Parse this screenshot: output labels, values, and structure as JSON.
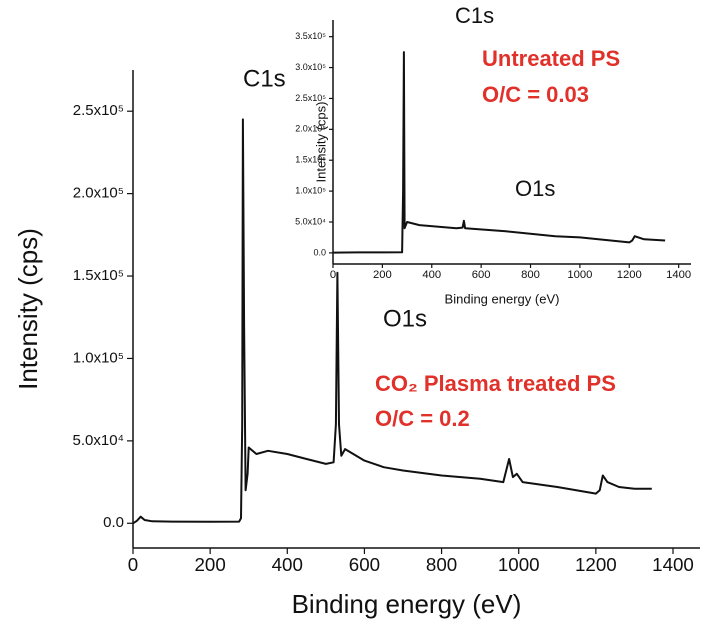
{
  "chart_data": [
    {
      "type": "line",
      "xlabel": "Binding energy (eV)",
      "ylabel": "Intensity (cps)",
      "color": "#111111",
      "xlim": [
        0,
        1470
      ],
      "ylim": [
        -15000,
        275000
      ],
      "xticks": [
        0,
        200,
        400,
        600,
        800,
        1000,
        1200,
        1400
      ],
      "yticks": [
        {
          "value": 0,
          "label": "0.0"
        },
        {
          "value": 50000,
          "label": "5.0x10⁴"
        },
        {
          "value": 100000,
          "label": "1.0x10⁵"
        },
        {
          "value": 150000,
          "label": "1.5x10⁵"
        },
        {
          "value": 200000,
          "label": "2.0x10⁵"
        },
        {
          "value": 250000,
          "label": "2.5x10⁵"
        }
      ],
      "x": [
        0,
        10,
        20,
        30,
        50,
        100,
        200,
        275,
        280,
        283,
        285,
        288,
        292,
        297,
        300,
        320,
        350,
        400,
        450,
        500,
        520,
        526,
        530,
        534,
        540,
        550,
        600,
        650,
        700,
        800,
        900,
        960,
        975,
        985,
        995,
        1010,
        1100,
        1200,
        1210,
        1218,
        1230,
        1260,
        1300,
        1345
      ],
      "values": [
        0,
        1500,
        4000,
        2000,
        1200,
        1000,
        900,
        1000,
        3000,
        60000,
        245000,
        120000,
        20000,
        30000,
        46000,
        42000,
        44000,
        42000,
        39000,
        36000,
        37000,
        60000,
        152000,
        60000,
        41000,
        45000,
        38000,
        34000,
        32000,
        29000,
        27000,
        25000,
        39000,
        28000,
        30000,
        25000,
        22000,
        18000,
        20000,
        29000,
        25000,
        22000,
        21000,
        21000
      ],
      "annotations": [
        {
          "text": "C1s",
          "color": "#111111"
        },
        {
          "text": "O1s",
          "color": "#111111"
        },
        {
          "text": "CO₂ Plasma treated PS",
          "color": "#e0312a"
        },
        {
          "text": "O/C = 0.2",
          "color": "#e0312a"
        }
      ]
    },
    {
      "type": "line",
      "xlabel": "Binding energy (eV)",
      "ylabel": "Intensity (cps)",
      "color": "#111111",
      "xlim": [
        0,
        1450
      ],
      "ylim": [
        -18000,
        377000
      ],
      "xticks": [
        0,
        200,
        400,
        600,
        800,
        1000,
        1200,
        1400
      ],
      "yticks": [
        {
          "value": 0,
          "label": "0.0"
        },
        {
          "value": 50000,
          "label": "5.0x10⁴"
        },
        {
          "value": 100000,
          "label": "1.0x10⁵"
        },
        {
          "value": 150000,
          "label": "1.5x10⁵"
        },
        {
          "value": 200000,
          "label": "2.0x10⁵"
        },
        {
          "value": 250000,
          "label": "2.5x10⁵"
        },
        {
          "value": 300000,
          "label": "3.0x10⁵"
        },
        {
          "value": 350000,
          "label": "3.5x10⁵"
        }
      ],
      "x": [
        0,
        100,
        200,
        280,
        284,
        287,
        290,
        295,
        300,
        350,
        500,
        525,
        530,
        535,
        700,
        900,
        1000,
        1200,
        1212,
        1222,
        1260,
        1345
      ],
      "values": [
        500,
        800,
        800,
        1000,
        100000,
        325000,
        40000,
        45000,
        50000,
        45000,
        40000,
        41000,
        52000,
        40000,
        35000,
        27000,
        25000,
        17000,
        20000,
        27000,
        22000,
        20000
      ],
      "annotations": [
        {
          "text": "C1s",
          "color": "#111111"
        },
        {
          "text": "O1s",
          "color": "#111111"
        },
        {
          "text": "Untreated PS",
          "color": "#e0312a"
        },
        {
          "text": "O/C = 0.03",
          "color": "#e0312a"
        }
      ]
    }
  ]
}
